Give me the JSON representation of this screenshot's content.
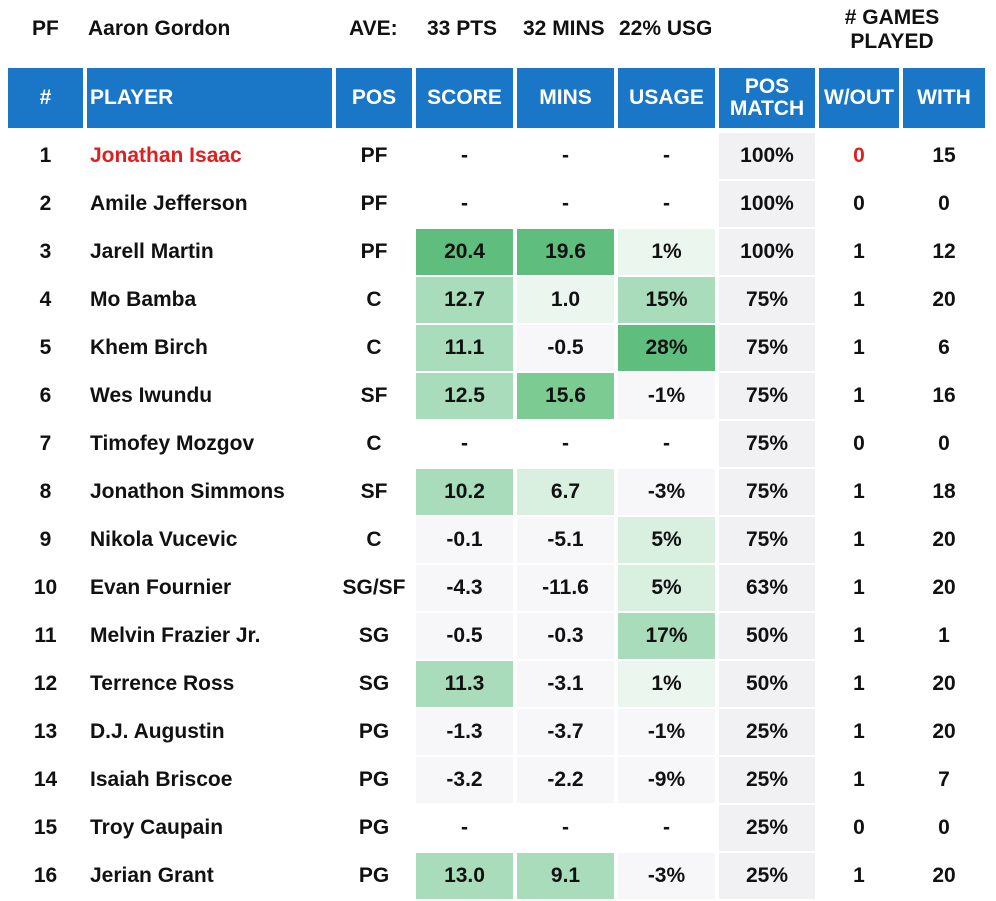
{
  "summary": {
    "pos": "PF",
    "player": "Aaron Gordon",
    "ave_label": "AVE:",
    "pts": "33 PTS",
    "mins": "32 MINS",
    "usg": "22% USG",
    "games_played_label": "# GAMES PLAYED"
  },
  "headers": {
    "num": "#",
    "player": "PLAYER",
    "pos": "POS",
    "score": "SCORE",
    "mins": "MINS",
    "usage": "USAGE",
    "pos_match": "POS MATCH",
    "wout": "W/OUT",
    "with": "WITH"
  },
  "colors": {
    "header_blue": "#1a77c7",
    "highlight_red": "#e02020",
    "green_dark": "#5fbe7d",
    "green_mid": "#a9dcba",
    "green_light": "#d9f0e1",
    "green_pale": "#eaf6ee",
    "neutral": "#f7f7f9",
    "pos_match_bg": "#f1f1f3"
  },
  "rows": [
    {
      "num": "1",
      "player": "Jonathan Isaac",
      "pos": "PF",
      "score": "-",
      "mins": "-",
      "usage": "-",
      "pos_match": "100%",
      "wout": "0",
      "with": "15",
      "highlight": true,
      "score_c": "none",
      "mins_c": "none",
      "usage_c": "none"
    },
    {
      "num": "2",
      "player": "Amile Jefferson",
      "pos": "PF",
      "score": "-",
      "mins": "-",
      "usage": "-",
      "pos_match": "100%",
      "wout": "0",
      "with": "0",
      "highlight": false,
      "score_c": "none",
      "mins_c": "none",
      "usage_c": "none"
    },
    {
      "num": "3",
      "player": "Jarell Martin",
      "pos": "PF",
      "score": "20.4",
      "mins": "19.6",
      "usage": "1%",
      "pos_match": "100%",
      "wout": "1",
      "with": "12",
      "highlight": false,
      "score_c": "dark",
      "mins_c": "dark",
      "usage_c": "pale"
    },
    {
      "num": "4",
      "player": "Mo Bamba",
      "pos": "C",
      "score": "12.7",
      "mins": "1.0",
      "usage": "15%",
      "pos_match": "75%",
      "wout": "1",
      "with": "20",
      "highlight": false,
      "score_c": "mid",
      "mins_c": "pale",
      "usage_c": "mid"
    },
    {
      "num": "5",
      "player": "Khem Birch",
      "pos": "C",
      "score": "11.1",
      "mins": "-0.5",
      "usage": "28%",
      "pos_match": "75%",
      "wout": "1",
      "with": "6",
      "highlight": false,
      "score_c": "mid",
      "mins_c": "neutral",
      "usage_c": "dark"
    },
    {
      "num": "6",
      "player": "Wes Iwundu",
      "pos": "SF",
      "score": "12.5",
      "mins": "15.6",
      "usage": "-1%",
      "pos_match": "75%",
      "wout": "1",
      "with": "16",
      "highlight": false,
      "score_c": "mid",
      "mins_c": "darkish",
      "usage_c": "neutral"
    },
    {
      "num": "7",
      "player": "Timofey Mozgov",
      "pos": "C",
      "score": "-",
      "mins": "-",
      "usage": "-",
      "pos_match": "75%",
      "wout": "0",
      "with": "0",
      "highlight": false,
      "score_c": "none",
      "mins_c": "none",
      "usage_c": "none"
    },
    {
      "num": "8",
      "player": "Jonathon Simmons",
      "pos": "SF",
      "score": "10.2",
      "mins": "6.7",
      "usage": "-3%",
      "pos_match": "75%",
      "wout": "1",
      "with": "18",
      "highlight": false,
      "score_c": "mid",
      "mins_c": "light",
      "usage_c": "neutral"
    },
    {
      "num": "9",
      "player": "Nikola Vucevic",
      "pos": "C",
      "score": "-0.1",
      "mins": "-5.1",
      "usage": "5%",
      "pos_match": "75%",
      "wout": "1",
      "with": "20",
      "highlight": false,
      "score_c": "neutral",
      "mins_c": "neutral",
      "usage_c": "light"
    },
    {
      "num": "10",
      "player": "Evan Fournier",
      "pos": "SG/SF",
      "score": "-4.3",
      "mins": "-11.6",
      "usage": "5%",
      "pos_match": "63%",
      "wout": "1",
      "with": "20",
      "highlight": false,
      "score_c": "neutral",
      "mins_c": "neutral",
      "usage_c": "light"
    },
    {
      "num": "11",
      "player": "Melvin Frazier Jr.",
      "pos": "SG",
      "score": "-0.5",
      "mins": "-0.3",
      "usage": "17%",
      "pos_match": "50%",
      "wout": "1",
      "with": "1",
      "highlight": false,
      "score_c": "neutral",
      "mins_c": "neutral",
      "usage_c": "mid"
    },
    {
      "num": "12",
      "player": "Terrence Ross",
      "pos": "SG",
      "score": "11.3",
      "mins": "-3.1",
      "usage": "1%",
      "pos_match": "50%",
      "wout": "1",
      "with": "20",
      "highlight": false,
      "score_c": "mid",
      "mins_c": "neutral",
      "usage_c": "pale"
    },
    {
      "num": "13",
      "player": "D.J. Augustin",
      "pos": "PG",
      "score": "-1.3",
      "mins": "-3.7",
      "usage": "-1%",
      "pos_match": "25%",
      "wout": "1",
      "with": "20",
      "highlight": false,
      "score_c": "neutral",
      "mins_c": "neutral",
      "usage_c": "neutral"
    },
    {
      "num": "14",
      "player": "Isaiah Briscoe",
      "pos": "PG",
      "score": "-3.2",
      "mins": "-2.2",
      "usage": "-9%",
      "pos_match": "25%",
      "wout": "1",
      "with": "7",
      "highlight": false,
      "score_c": "neutral",
      "mins_c": "neutral",
      "usage_c": "neutral"
    },
    {
      "num": "15",
      "player": "Troy Caupain",
      "pos": "PG",
      "score": "-",
      "mins": "-",
      "usage": "-",
      "pos_match": "25%",
      "wout": "0",
      "with": "0",
      "highlight": false,
      "score_c": "none",
      "mins_c": "none",
      "usage_c": "none"
    },
    {
      "num": "16",
      "player": "Jerian Grant",
      "pos": "PG",
      "score": "13.0",
      "mins": "9.1",
      "usage": "-3%",
      "pos_match": "25%",
      "wout": "1",
      "with": "20",
      "highlight": false,
      "score_c": "mid",
      "mins_c": "mid",
      "usage_c": "neutral"
    }
  ]
}
